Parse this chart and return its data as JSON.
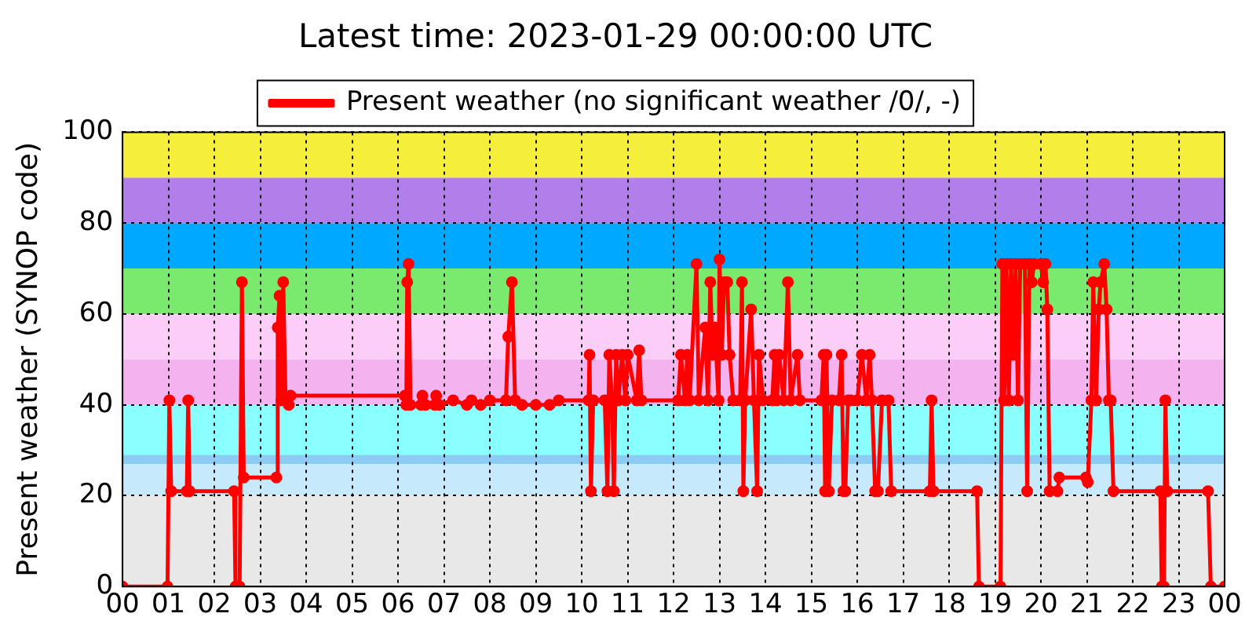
{
  "chart_data": {
    "type": "line",
    "title": "Latest time: 2023-01-29 00:00:00 UTC",
    "ylabel": "Present weather (SYNOP code)",
    "xlim": [
      0,
      24
    ],
    "xticks": [
      {
        "value": 0,
        "label": "00"
      },
      {
        "value": 1,
        "label": "01"
      },
      {
        "value": 2,
        "label": "02"
      },
      {
        "value": 3,
        "label": "03"
      },
      {
        "value": 4,
        "label": "04"
      },
      {
        "value": 5,
        "label": "05"
      },
      {
        "value": 6,
        "label": "06"
      },
      {
        "value": 7,
        "label": "07"
      },
      {
        "value": 8,
        "label": "08"
      },
      {
        "value": 9,
        "label": "09"
      },
      {
        "value": 10,
        "label": "10"
      },
      {
        "value": 11,
        "label": "11"
      },
      {
        "value": 12,
        "label": "12"
      },
      {
        "value": 13,
        "label": "13"
      },
      {
        "value": 14,
        "label": "14"
      },
      {
        "value": 15,
        "label": "15"
      },
      {
        "value": 16,
        "label": "16"
      },
      {
        "value": 17,
        "label": "17"
      },
      {
        "value": 18,
        "label": "18"
      },
      {
        "value": 19,
        "label": "19"
      },
      {
        "value": 20,
        "label": "20"
      },
      {
        "value": 21,
        "label": "21"
      },
      {
        "value": 22,
        "label": "22"
      },
      {
        "value": 23,
        "label": "23"
      },
      {
        "value": 24,
        "label": "00"
      }
    ],
    "ylim": [
      0,
      100
    ],
    "yticks": [
      0,
      20,
      40,
      60,
      80,
      100
    ],
    "grid": true,
    "legend": "top",
    "marker": "circle",
    "line_style": "solid",
    "bands": [
      {
        "axis": "y",
        "from": 0,
        "to": 20,
        "color": "#e8e8e8"
      },
      {
        "axis": "y",
        "from": 20,
        "to": 27,
        "color": "#c6eafc"
      },
      {
        "axis": "y",
        "from": 27,
        "to": 29,
        "color": "#8ccbf2"
      },
      {
        "axis": "y",
        "from": 29,
        "to": 40,
        "color": "#8affff"
      },
      {
        "axis": "y",
        "from": 40,
        "to": 50,
        "color": "#f4b2ee"
      },
      {
        "axis": "y",
        "from": 50,
        "to": 60,
        "color": "#fccdf6"
      },
      {
        "axis": "y",
        "from": 60,
        "to": 70,
        "color": "#7aea6e"
      },
      {
        "axis": "y",
        "from": 70,
        "to": 80,
        "color": "#00a8ff"
      },
      {
        "axis": "y",
        "from": 80,
        "to": 90,
        "color": "#b27fea"
      },
      {
        "axis": "y",
        "from": 90,
        "to": 100,
        "color": "#f5ee3a"
      }
    ],
    "series": [
      {
        "name": "Present weather (no significant weather /0/, -)",
        "color": "#ff0000",
        "x": [
          0,
          0.98,
          1.02,
          1.06,
          1.4,
          1.43,
          1.46,
          2.43,
          2.46,
          2.55,
          2.6,
          2.64,
          3.35,
          3.38,
          3.42,
          3.46,
          3.5,
          3.55,
          3.62,
          3.66,
          6.15,
          6.18,
          6.2,
          6.23,
          6.27,
          6.5,
          6.53,
          6.6,
          6.8,
          6.83,
          6.9,
          7.2,
          7.5,
          7.6,
          7.8,
          8.0,
          8.35,
          8.4,
          8.48,
          8.55,
          8.7,
          9.0,
          9.3,
          9.5,
          10.15,
          10.17,
          10.2,
          10.25,
          10.5,
          10.56,
          10.6,
          10.66,
          10.7,
          10.75,
          10.8,
          10.88,
          10.95,
          11.0,
          11.2,
          11.25,
          11.3,
          12.1,
          12.16,
          12.25,
          12.3,
          12.35,
          12.5,
          12.55,
          12.69,
          12.75,
          12.8,
          12.85,
          12.9,
          12.98,
          13.0,
          13.05,
          13.1,
          13.17,
          13.22,
          13.3,
          13.45,
          13.49,
          13.52,
          13.56,
          13.69,
          13.75,
          13.82,
          13.86,
          13.95,
          14.15,
          14.2,
          14.25,
          14.3,
          14.4,
          14.49,
          14.55,
          14.7,
          14.75,
          15.22,
          15.27,
          15.3,
          15.33,
          15.38,
          15.45,
          15.6,
          15.66,
          15.7,
          15.74,
          15.8,
          15.86,
          16.0,
          16.1,
          16.2,
          16.27,
          16.32,
          16.39,
          16.45,
          16.54,
          16.68,
          16.74,
          17.58,
          17.62,
          17.66,
          18.61,
          18.65,
          19.12,
          19.16,
          19.2,
          19.25,
          19.3,
          19.35,
          19.4,
          19.45,
          19.5,
          19.55,
          19.65,
          19.7,
          19.75,
          19.8,
          19.85,
          20.0,
          20.05,
          20.1,
          20.14,
          20.19,
          20.36,
          20.4,
          20.98,
          21.02,
          21.1,
          21.14,
          21.2,
          21.26,
          21.3,
          21.38,
          21.43,
          21.48,
          21.52,
          21.58,
          22.6,
          22.63,
          22.68,
          22.71,
          22.75,
          23.64,
          23.7,
          24
        ],
        "values": [
          0,
          0,
          41,
          21,
          21,
          41,
          21,
          21,
          0,
          0,
          67,
          24,
          24,
          57,
          64,
          41,
          67,
          41,
          40,
          42,
          42,
          40,
          67,
          71,
          40,
          40,
          42,
          40,
          40,
          42,
          40,
          41,
          40,
          41,
          40,
          41,
          41,
          55,
          67,
          41,
          40,
          40,
          40,
          41,
          41,
          51,
          21,
          41,
          41,
          21,
          51,
          41,
          21,
          51,
          41,
          51,
          41,
          51,
          41,
          52,
          41,
          41,
          51,
          41,
          51,
          41,
          71,
          41,
          57,
          41,
          67,
          51,
          57,
          41,
          72,
          51,
          67,
          67,
          51,
          41,
          41,
          67,
          21,
          41,
          61,
          41,
          21,
          51,
          41,
          41,
          51,
          41,
          51,
          41,
          67,
          41,
          51,
          41,
          41,
          51,
          21,
          51,
          21,
          41,
          41,
          51,
          21,
          21,
          41,
          41,
          41,
          51,
          41,
          51,
          41,
          21,
          21,
          41,
          41,
          21,
          21,
          41,
          21,
          21,
          0,
          0,
          71,
          41,
          71,
          41,
          71,
          51,
          71,
          41,
          71,
          71,
          21,
          71,
          67,
          71,
          71,
          67,
          71,
          61,
          21,
          21,
          24,
          24,
          23,
          41,
          67,
          41,
          61,
          67,
          71,
          61,
          41,
          41,
          21,
          21,
          0,
          0,
          41,
          21,
          21,
          0,
          0
        ]
      }
    ]
  }
}
